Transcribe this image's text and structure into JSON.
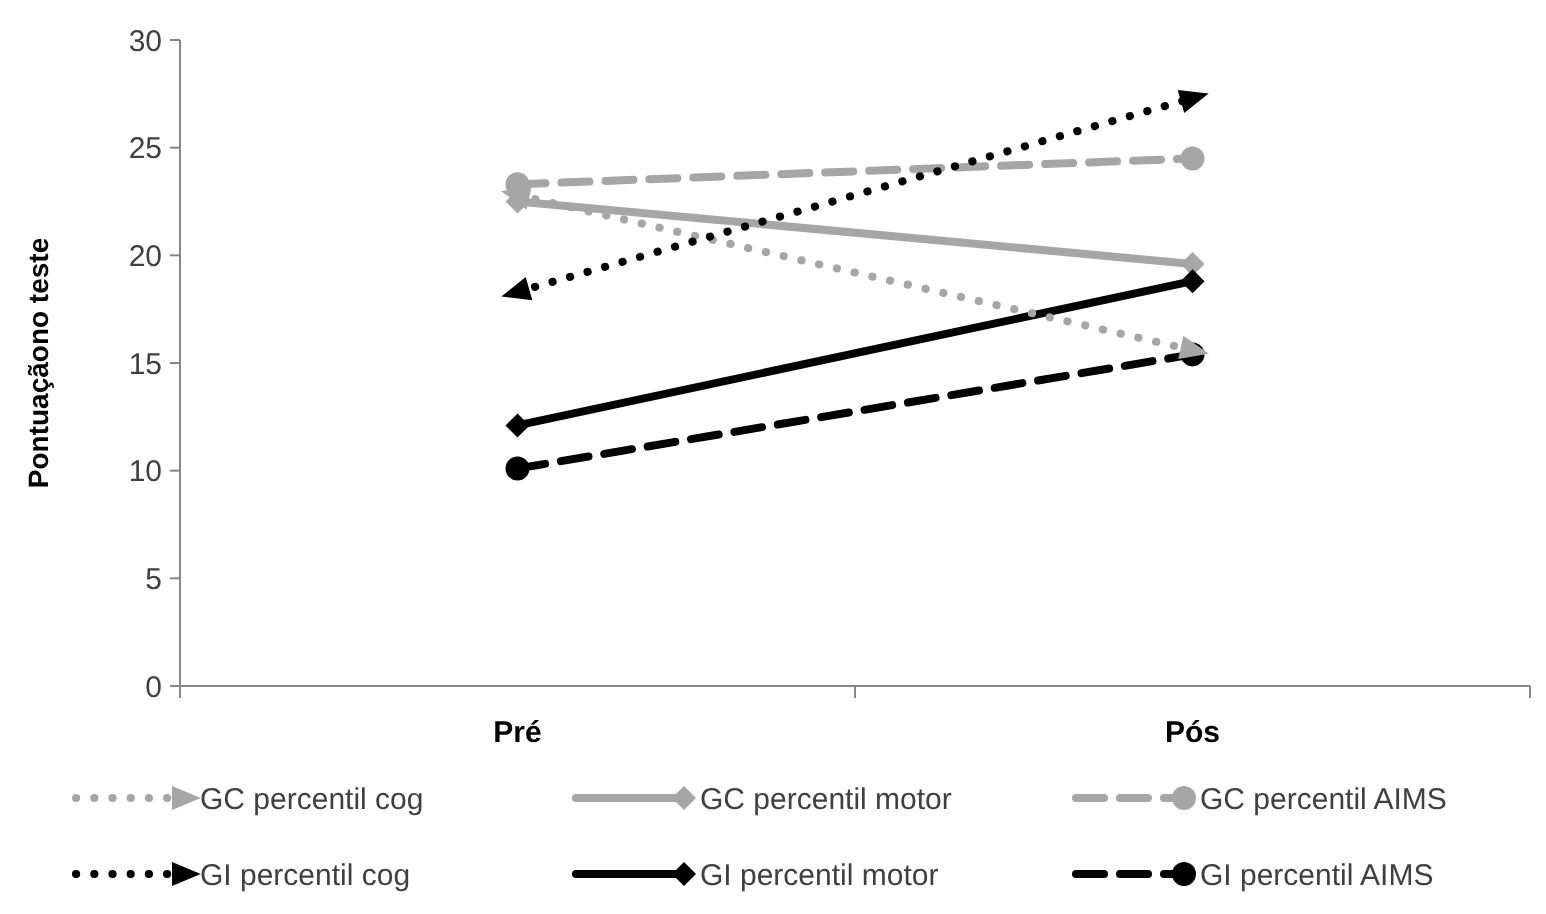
{
  "chart_data": {
    "type": "line",
    "ylabel": "Pontuaçãono teste",
    "categories": [
      "Pré",
      "Pós"
    ],
    "ylim": [
      0,
      30
    ],
    "yticks": [
      0,
      5,
      10,
      15,
      20,
      25,
      30
    ],
    "grid": false,
    "legend": "bottom",
    "series": [
      {
        "name": "GC percentil cog",
        "color": "#a6a6a6",
        "marker": "triangle",
        "line_style": "dotted",
        "values": [
          22.8,
          15.6
        ]
      },
      {
        "name": "GC percentil motor",
        "color": "#a6a6a6",
        "marker": "diamond",
        "line_style": "solid",
        "values": [
          22.5,
          19.6
        ]
      },
      {
        "name": "GC percentil AIMS",
        "color": "#a6a6a6",
        "marker": "circle",
        "line_style": "dashed",
        "values": [
          23.3,
          24.5
        ]
      },
      {
        "name": "GI percentil cog",
        "color": "#000000",
        "marker": "triangle",
        "line_style": "dotted",
        "values": [
          18.3,
          27.3
        ]
      },
      {
        "name": "GI percentil motor",
        "color": "#000000",
        "marker": "diamond",
        "line_style": "solid",
        "values": [
          12.1,
          18.8
        ]
      },
      {
        "name": "GI percentil AIMS",
        "color": "#000000",
        "marker": "circle",
        "line_style": "dashed",
        "values": [
          10.1,
          15.4
        ]
      }
    ]
  }
}
